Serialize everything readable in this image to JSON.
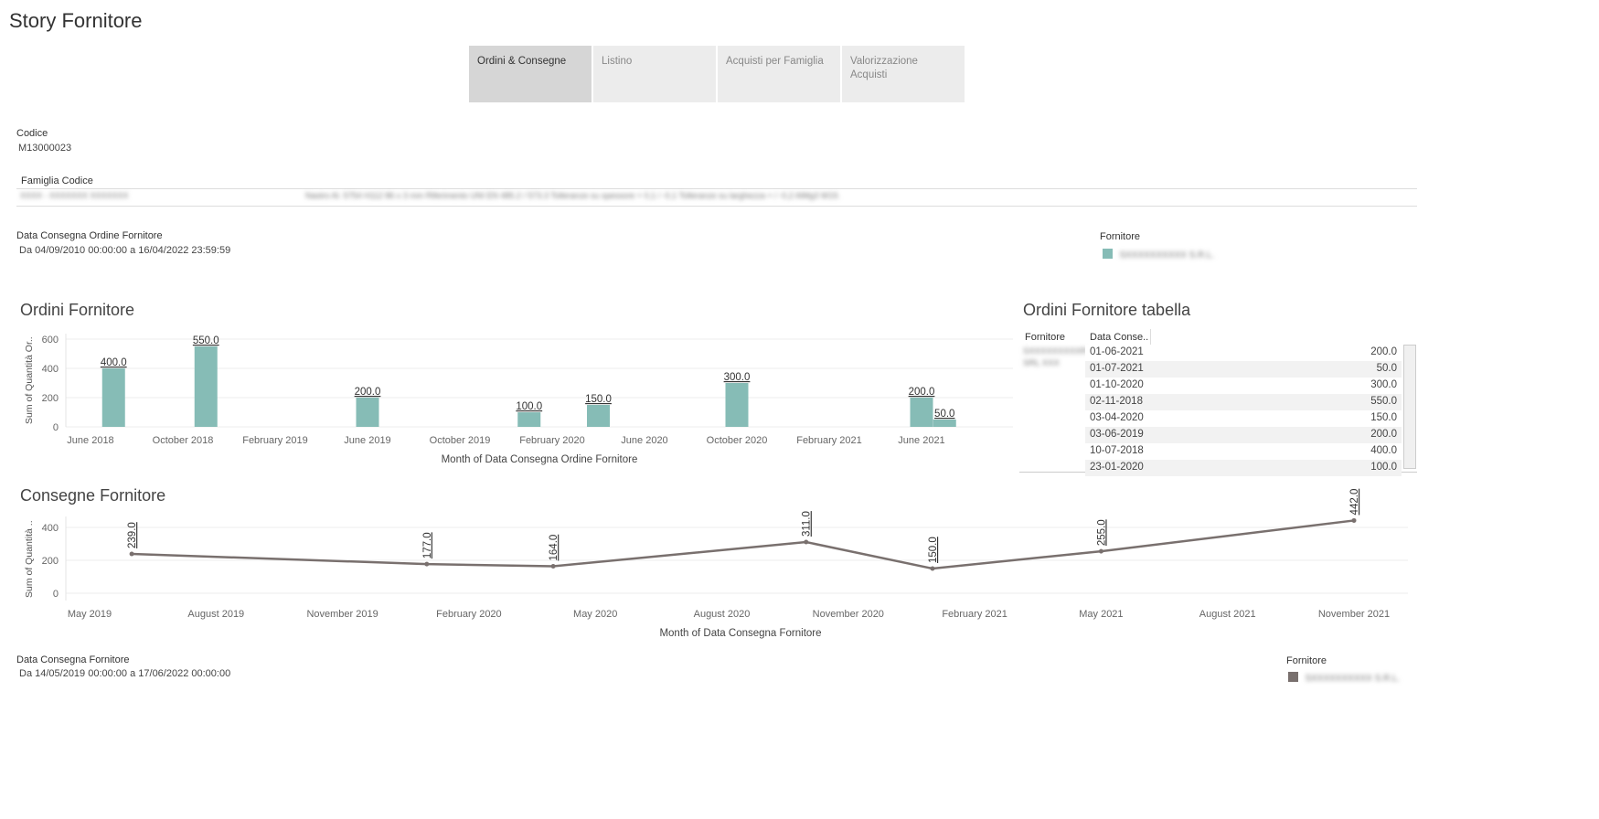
{
  "story": {
    "title": "Story Fornitore"
  },
  "tabs": [
    {
      "label": "Ordini & Consegne",
      "active": true
    },
    {
      "label": "Listino",
      "active": false
    },
    {
      "label": "Acquisti per Famiglia",
      "active": false
    },
    {
      "label": "Valorizzazione Acquisti",
      "active": false
    }
  ],
  "filters": {
    "codice_label": "Codice",
    "codice_value": "M13000023",
    "famiglia_label": "Famiglia Codice",
    "famiglia_value_1": "XXXX - XXXXXXX XXXXXXX",
    "famiglia_value_2": "Nastro Al. 5754 H112 86 x 3 mm Riferimento UNI EN 485.2 / 573.3 Tolleranze su spessore + 0,1 / -0,1 Tolleranze su larghezza + / -0,2 AlMg3 W19.",
    "data_ordine_label": "Data Consegna Ordine Fornitore",
    "data_ordine_value": "Da 04/09/2010 00:00:00 a 16/04/2022 23:59:59",
    "data_consegna_label": "Data Consegna Fornitore",
    "data_consegna_value": "Da 14/05/2019 00:00:00 a 17/06/2022 00:00:00"
  },
  "legend_top": {
    "title": "Fornitore",
    "item": "SXXXXXXXXXX S.R.L.",
    "color": "#86bcb6"
  },
  "legend_bottom": {
    "title": "Fornitore",
    "item": "SXXXXXXXXXX S.R.L.",
    "color": "#79706e"
  },
  "ordini_chart": {
    "title": "Ordini Fornitore",
    "ylabel": "Sum of Quantità Or..",
    "xlabel": "Month of Data Consegna Ordine Fornitore"
  },
  "consegne_chart": {
    "title": "Consegne Fornitore",
    "ylabel": "Sum of Quantità ..",
    "xlabel": "Month of Data Consegna Fornitore"
  },
  "table": {
    "title": "Ordini Fornitore tabella",
    "headers": [
      "Fornitore",
      "Data Conse.."
    ],
    "fornitore_value": "SXXXXXXXXXR SRL XXX",
    "rows": [
      {
        "date": "01-06-2021",
        "value": "200.0"
      },
      {
        "date": "01-07-2021",
        "value": "50.0"
      },
      {
        "date": "01-10-2020",
        "value": "300.0"
      },
      {
        "date": "02-11-2018",
        "value": "550.0"
      },
      {
        "date": "03-04-2020",
        "value": "150.0"
      },
      {
        "date": "03-06-2019",
        "value": "200.0"
      },
      {
        "date": "10-07-2018",
        "value": "400.0"
      },
      {
        "date": "23-01-2020",
        "value": "100.0"
      }
    ]
  },
  "chart_data": [
    {
      "type": "bar",
      "title": "Ordini Fornitore",
      "xlabel": "Month of Data Consegna Ordine Fornitore",
      "ylabel": "Sum of Quantità Or..",
      "ylim": [
        0,
        650
      ],
      "yticks": [
        0,
        200,
        400,
        600
      ],
      "xticks": [
        "June 2018",
        "October 2018",
        "February 2019",
        "June 2019",
        "October 2019",
        "February 2020",
        "June 2020",
        "October 2020",
        "February 2021",
        "June 2021"
      ],
      "categories": [
        "2018-07",
        "2018-11",
        "2019-06",
        "2020-01",
        "2020-04",
        "2020-10",
        "2021-06",
        "2021-07"
      ],
      "values": [
        400,
        550,
        200,
        100,
        150,
        300,
        200,
        50
      ],
      "labels": [
        "400.0",
        "550.0",
        "200.0",
        "100.0",
        "150.0",
        "300.0",
        "200.0",
        "50.0"
      ],
      "color": "#86bcb6",
      "grid": true
    },
    {
      "type": "line",
      "title": "Consegne Fornitore",
      "xlabel": "Month of Data Consegna Fornitore",
      "ylabel": "Sum of Quantità ..",
      "ylim": [
        0,
        450
      ],
      "yticks": [
        0,
        200,
        400
      ],
      "xticks": [
        "May 2019",
        "August 2019",
        "November 2019",
        "February 2020",
        "May 2020",
        "August 2020",
        "November 2020",
        "February 2021",
        "May 2021",
        "August 2021",
        "November 2021"
      ],
      "x": [
        "2019-06",
        "2020-01",
        "2020-04",
        "2020-10",
        "2021-01",
        "2021-05",
        "2021-11"
      ],
      "values": [
        239,
        177,
        164,
        311,
        150,
        255,
        442
      ],
      "labels": [
        "239.0",
        "177.0",
        "164.0",
        "311.0",
        "150.0",
        "255.0",
        "442.0"
      ],
      "color": "#79706e",
      "grid": true
    }
  ]
}
